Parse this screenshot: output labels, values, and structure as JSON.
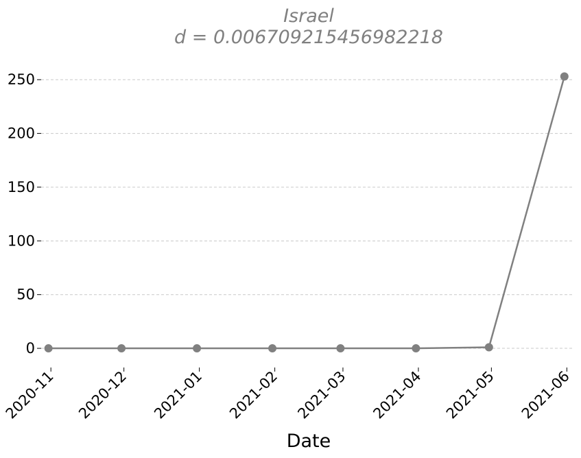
{
  "chart_data": {
    "type": "line",
    "title": "Israel",
    "subtitle": "d = 0.006709215456982218",
    "xlabel": "Date",
    "ylabel": "",
    "x_tick_labels": [
      "2020-11",
      "2020-12",
      "2021-01",
      "2021-02",
      "2021-03",
      "2021-04",
      "2021-05",
      "2021-06"
    ],
    "y_ticks": [
      0,
      50,
      100,
      150,
      200,
      250
    ],
    "ylim": [
      -14,
      268
    ],
    "x_range": [
      "2020-10-28",
      "2021-06-04"
    ],
    "grid": "horizontal dashed",
    "series": [
      {
        "color": "#808080",
        "x": [
          "2020-10-31",
          "2020-11-30",
          "2020-12-31",
          "2021-01-31",
          "2021-02-28",
          "2021-03-31",
          "2021-04-30",
          "2021-05-31"
        ],
        "y": [
          0,
          0,
          0,
          0,
          0,
          0,
          1,
          253
        ]
      }
    ]
  }
}
